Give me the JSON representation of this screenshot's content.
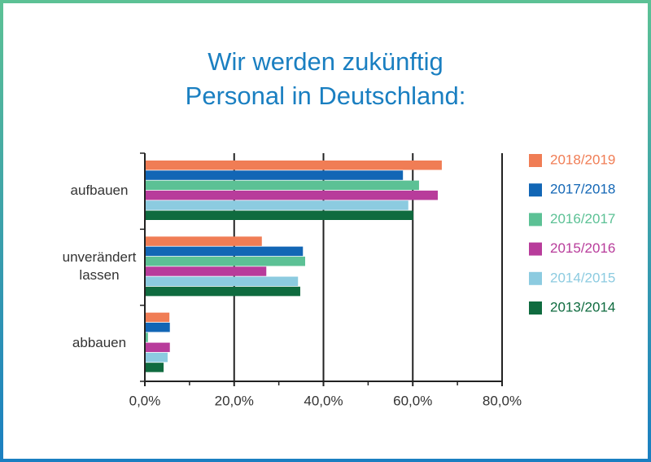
{
  "chart_data": {
    "type": "hbar",
    "title": [
      "Wir werden zukünftig",
      "Personal in Deutschland:"
    ],
    "categories": [
      "aufbauen",
      "unverändert lassen",
      "abbauen"
    ],
    "series": [
      {
        "name": "2018/2019",
        "color": "#f07d55",
        "values": [
          66.5,
          26.2,
          5.5
        ]
      },
      {
        "name": "2017/2018",
        "color": "#1266b5",
        "values": [
          57.8,
          35.4,
          5.6
        ]
      },
      {
        "name": "2016/2017",
        "color": "#5cc195",
        "values": [
          61.4,
          35.9,
          0.7
        ]
      },
      {
        "name": "2015/2016",
        "color": "#b83c9b",
        "values": [
          65.6,
          27.2,
          5.6
        ]
      },
      {
        "name": "2014/2015",
        "color": "#8ccbe0",
        "values": [
          59.0,
          34.3,
          5.1
        ]
      },
      {
        "name": "2013/2014",
        "color": "#0f6b3f",
        "values": [
          60.1,
          34.8,
          4.2
        ]
      }
    ],
    "xlim": [
      0,
      80
    ],
    "xticks": [
      {
        "value": 0,
        "label": "0,0%"
      },
      {
        "value": 20,
        "label": "20,0%"
      },
      {
        "value": 40,
        "label": "40,0%"
      },
      {
        "value": 60,
        "label": "60,0%"
      },
      {
        "value": 80,
        "label": "80,0%"
      }
    ],
    "grid": true
  }
}
